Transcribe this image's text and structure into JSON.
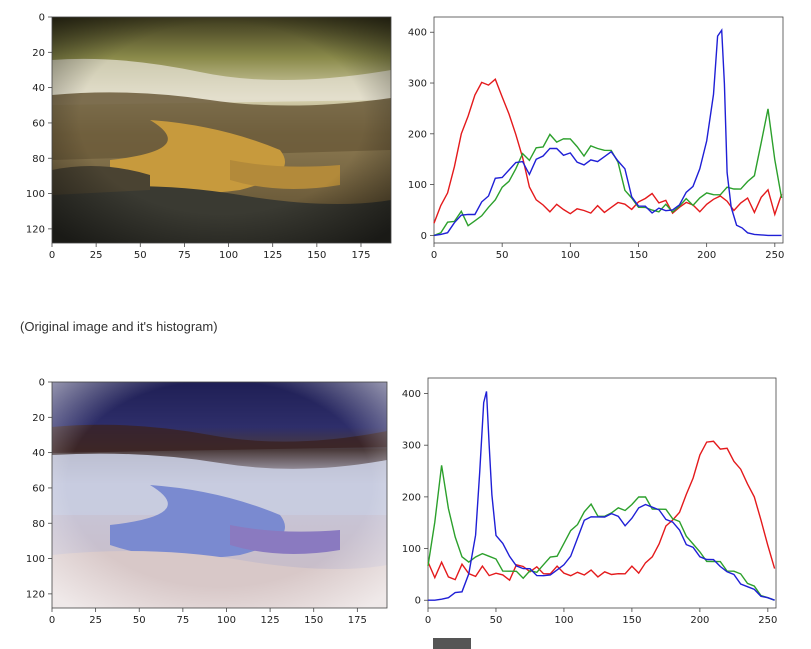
{
  "caption": "(Original image and it's histogram)",
  "chart_data": [
    {
      "type": "image",
      "variant": "original",
      "xlabel": "",
      "ylabel": "",
      "xlim": [
        0,
        192
      ],
      "ylim": [
        128,
        0
      ],
      "x_ticks": [
        0,
        25,
        50,
        75,
        100,
        125,
        150,
        175
      ],
      "y_ticks": [
        0,
        20,
        40,
        60,
        80,
        100,
        120
      ]
    },
    {
      "type": "line",
      "variant": "original-histogram",
      "xlabel": "",
      "ylabel": "",
      "xlim": [
        0,
        256
      ],
      "ylim": [
        -15,
        430
      ],
      "x_ticks": [
        0,
        50,
        100,
        150,
        200,
        250
      ],
      "y_ticks": [
        0,
        100,
        200,
        300,
        400
      ],
      "series": [
        {
          "color": "#e41a1c",
          "x": [
            0,
            5,
            10,
            15,
            20,
            25,
            30,
            35,
            40,
            45,
            50,
            55,
            60,
            65,
            70,
            75,
            80,
            85,
            90,
            95,
            100,
            105,
            110,
            115,
            120,
            125,
            130,
            135,
            140,
            145,
            150,
            155,
            160,
            165,
            170,
            175,
            180,
            185,
            190,
            195,
            200,
            205,
            210,
            215,
            220,
            225,
            230,
            235,
            240,
            245,
            250,
            255
          ],
          "y": [
            30,
            60,
            80,
            140,
            200,
            230,
            280,
            300,
            290,
            310,
            270,
            245,
            200,
            150,
            100,
            70,
            55,
            50,
            60,
            45,
            45,
            50,
            55,
            45,
            55,
            50,
            55,
            60,
            65,
            50,
            60,
            75,
            80,
            70,
            70,
            40,
            60,
            65,
            55,
            50,
            60,
            65,
            80,
            65,
            55,
            65,
            70,
            50,
            75,
            85,
            45,
            80
          ]
        },
        {
          "color": "#2ca02c",
          "x": [
            0,
            5,
            10,
            15,
            20,
            25,
            30,
            35,
            40,
            45,
            50,
            55,
            60,
            65,
            70,
            75,
            80,
            85,
            90,
            95,
            100,
            105,
            110,
            115,
            120,
            125,
            130,
            135,
            140,
            145,
            150,
            155,
            160,
            165,
            170,
            175,
            180,
            185,
            190,
            195,
            200,
            205,
            210,
            215,
            220,
            225,
            230,
            235,
            240,
            245,
            250,
            255
          ],
          "y": [
            0,
            5,
            20,
            30,
            45,
            25,
            30,
            35,
            60,
            70,
            90,
            110,
            130,
            155,
            150,
            170,
            180,
            200,
            180,
            195,
            190,
            170,
            160,
            175,
            165,
            170,
            165,
            150,
            90,
            70,
            60,
            55,
            45,
            50,
            60,
            40,
            60,
            70,
            65,
            75,
            80,
            85,
            80,
            90,
            95,
            90,
            100,
            120,
            180,
            255,
            150,
            70
          ]
        },
        {
          "color": "#1f1fd6",
          "x": [
            0,
            5,
            10,
            15,
            20,
            25,
            30,
            35,
            40,
            45,
            50,
            55,
            60,
            65,
            70,
            75,
            80,
            85,
            90,
            95,
            100,
            105,
            110,
            115,
            120,
            125,
            130,
            135,
            140,
            145,
            150,
            155,
            160,
            165,
            170,
            175,
            180,
            185,
            190,
            195,
            200,
            205,
            208,
            211,
            213,
            215,
            218,
            222,
            226,
            230,
            235,
            240,
            245,
            250,
            255
          ],
          "y": [
            0,
            2,
            10,
            25,
            35,
            45,
            40,
            60,
            80,
            110,
            120,
            130,
            140,
            150,
            120,
            145,
            160,
            170,
            165,
            160,
            160,
            150,
            140,
            145,
            150,
            155,
            160,
            150,
            130,
            70,
            60,
            55,
            50,
            55,
            45,
            55,
            60,
            80,
            100,
            130,
            180,
            280,
            390,
            410,
            300,
            120,
            60,
            20,
            10,
            5,
            2,
            1,
            0,
            0,
            0
          ]
        }
      ]
    },
    {
      "type": "image",
      "variant": "negative",
      "xlabel": "",
      "ylabel": "",
      "xlim": [
        0,
        192
      ],
      "ylim": [
        128,
        0
      ],
      "x_ticks": [
        0,
        25,
        50,
        75,
        100,
        125,
        150,
        175
      ],
      "y_ticks": [
        0,
        20,
        40,
        60,
        80,
        100,
        120
      ]
    },
    {
      "type": "line",
      "variant": "negative-histogram",
      "xlabel": "",
      "ylabel": "",
      "xlim": [
        0,
        256
      ],
      "ylim": [
        -15,
        430
      ],
      "x_ticks": [
        0,
        50,
        100,
        150,
        200,
        250
      ],
      "y_ticks": [
        0,
        100,
        200,
        300,
        400
      ],
      "series": [
        {
          "color": "#e41a1c",
          "x": [
            0,
            5,
            10,
            15,
            20,
            25,
            30,
            35,
            40,
            45,
            50,
            55,
            60,
            65,
            70,
            75,
            80,
            85,
            90,
            95,
            100,
            105,
            110,
            115,
            120,
            125,
            130,
            135,
            140,
            145,
            150,
            155,
            160,
            165,
            170,
            175,
            180,
            185,
            190,
            195,
            200,
            205,
            210,
            215,
            220,
            225,
            230,
            235,
            240,
            245,
            250,
            255
          ],
          "y": [
            80,
            45,
            70,
            50,
            40,
            65,
            55,
            45,
            60,
            50,
            50,
            55,
            40,
            65,
            70,
            55,
            60,
            55,
            50,
            60,
            55,
            45,
            60,
            50,
            55,
            50,
            55,
            45,
            55,
            50,
            60,
            55,
            70,
            90,
            110,
            140,
            160,
            170,
            200,
            240,
            280,
            300,
            310,
            290,
            300,
            270,
            250,
            230,
            200,
            150,
            110,
            60
          ]
        },
        {
          "color": "#2ca02c",
          "x": [
            0,
            5,
            10,
            15,
            20,
            25,
            30,
            35,
            40,
            45,
            50,
            55,
            60,
            65,
            70,
            75,
            80,
            85,
            90,
            95,
            100,
            105,
            110,
            115,
            120,
            125,
            130,
            135,
            140,
            145,
            150,
            155,
            160,
            165,
            170,
            175,
            180,
            185,
            190,
            195,
            200,
            205,
            210,
            215,
            220,
            225,
            230,
            235,
            240,
            245,
            250,
            255
          ],
          "y": [
            70,
            150,
            255,
            180,
            120,
            90,
            75,
            80,
            95,
            85,
            75,
            60,
            55,
            50,
            45,
            55,
            60,
            70,
            80,
            90,
            110,
            130,
            150,
            170,
            180,
            165,
            160,
            175,
            180,
            170,
            190,
            200,
            195,
            180,
            175,
            170,
            160,
            150,
            130,
            110,
            90,
            80,
            75,
            70,
            60,
            55,
            45,
            35,
            25,
            15,
            5,
            0
          ]
        },
        {
          "color": "#1f1fd6",
          "x": [
            0,
            5,
            10,
            15,
            20,
            25,
            30,
            35,
            38,
            41,
            43,
            45,
            47,
            50,
            55,
            60,
            65,
            70,
            75,
            80,
            85,
            90,
            95,
            100,
            105,
            110,
            115,
            120,
            125,
            130,
            135,
            140,
            145,
            150,
            155,
            160,
            165,
            170,
            175,
            180,
            185,
            190,
            195,
            200,
            205,
            210,
            215,
            220,
            225,
            230,
            235,
            240,
            245,
            250,
            255
          ],
          "y": [
            0,
            0,
            2,
            5,
            10,
            20,
            50,
            120,
            250,
            380,
            410,
            300,
            200,
            130,
            110,
            80,
            70,
            60,
            55,
            50,
            45,
            55,
            60,
            65,
            90,
            120,
            150,
            165,
            160,
            155,
            170,
            160,
            150,
            160,
            175,
            190,
            180,
            170,
            160,
            150,
            130,
            110,
            100,
            90,
            80,
            75,
            70,
            55,
            45,
            35,
            25,
            15,
            10,
            5,
            0
          ]
        }
      ]
    }
  ]
}
